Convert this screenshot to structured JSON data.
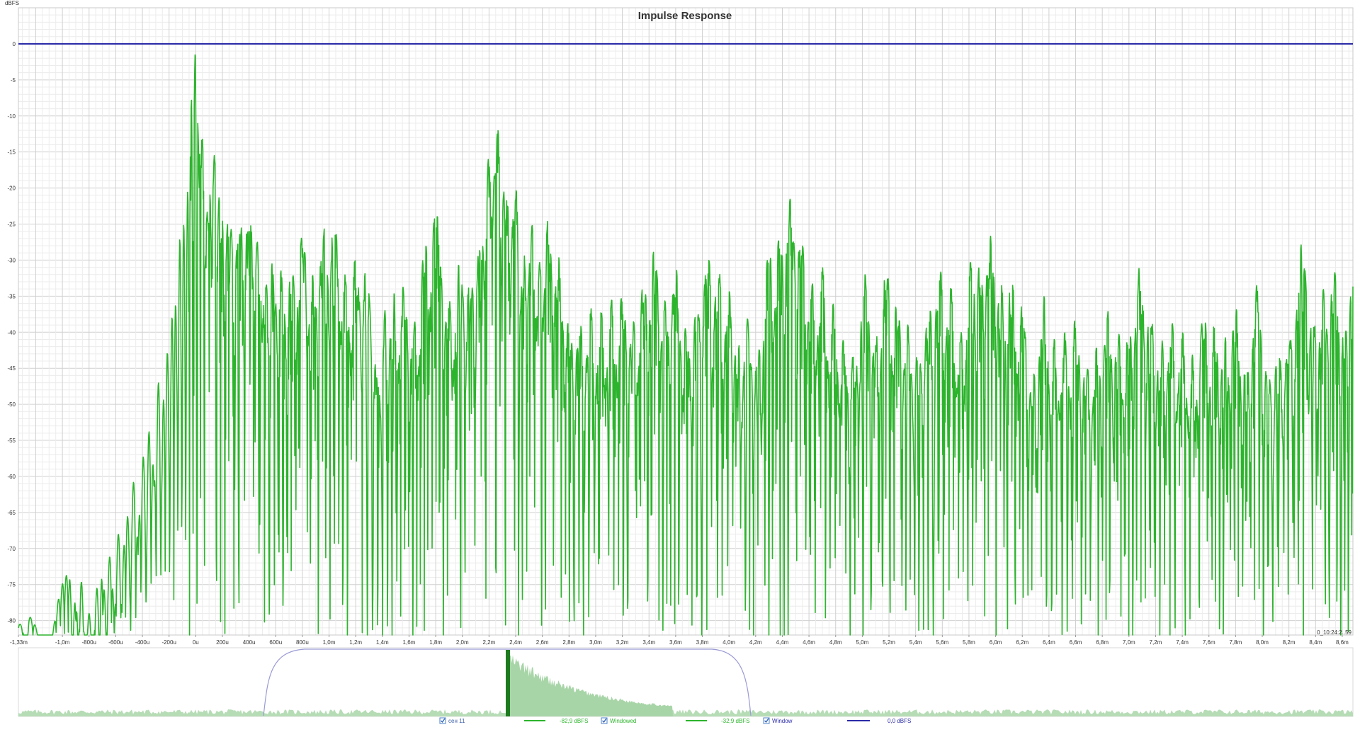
{
  "chart_data": {
    "type": "line",
    "title": "Impulse Response",
    "ylabel": "dBFS",
    "xlabel": "",
    "xlim": [
      -1.33,
      8.68
    ],
    "ylim": [
      -82,
      5
    ],
    "x_unit": "ms",
    "grid": true,
    "y_ticks": [
      0,
      -5,
      -10,
      -15,
      -20,
      -25,
      -30,
      -35,
      -40,
      -45,
      -50,
      -55,
      -60,
      -65,
      -70,
      -75,
      -80
    ],
    "y_tick_labels": [
      "0",
      "-5",
      "-10",
      "-15",
      "-20",
      "-25",
      "-30",
      "-35",
      "-40",
      "-45",
      "-50",
      "-55",
      "-60",
      "-65",
      "-70",
      "-75",
      "-80"
    ],
    "x_ticks": [
      -1.33,
      -1.0,
      -0.8,
      -0.6,
      -0.4,
      -0.2,
      0,
      0.2,
      0.4,
      0.6,
      0.8,
      1.0,
      1.2,
      1.4,
      1.6,
      1.8,
      2.0,
      2.2,
      2.4,
      2.6,
      2.8,
      3.0,
      3.2,
      3.4,
      3.6,
      3.8,
      4.0,
      4.2,
      4.4,
      4.6,
      4.8,
      5.0,
      5.2,
      5.4,
      5.6,
      5.8,
      6.0,
      6.2,
      6.4,
      6.6,
      6.8,
      7.0,
      7.2,
      7.4,
      7.6,
      7.8,
      8.0,
      8.2,
      8.4,
      8.6
    ],
    "x_tick_labels": [
      "-1,33m",
      "-1,0m",
      "-800u",
      "-600u",
      "-400u",
      "-200u",
      "0u",
      "200u",
      "400u",
      "600u",
      "800u",
      "1,0m",
      "1,2m",
      "1,4m",
      "1,6m",
      "1,8m",
      "2,0m",
      "2,2m",
      "2,4m",
      "2,6m",
      "2,8m",
      "3,0m",
      "3,2m",
      "3,4m",
      "3,6m",
      "3,8m",
      "4,0m",
      "4,2m",
      "4,4m",
      "4,6m",
      "4,8m",
      "5,0m",
      "5,2m",
      "5,4m",
      "5,6m",
      "5,8m",
      "6,0m",
      "6,2m",
      "6,4m",
      "6,6m",
      "6,8m",
      "7,0m",
      "7,2m",
      "7,4m",
      "7,6m",
      "7,8m",
      "8,0m",
      "8,2m",
      "8,4m",
      "8,6m"
    ],
    "series": [
      {
        "name": "Windowed",
        "color": "#2db42d",
        "peaks": [
          [
            -1.3,
            -80.5
          ],
          [
            -1.25,
            -79.5
          ],
          [
            -0.95,
            -73.5
          ],
          [
            -0.9,
            -76
          ],
          [
            -0.86,
            -74.5
          ],
          [
            -0.8,
            -79
          ],
          [
            -0.74,
            -75.5
          ],
          [
            -0.7,
            -72.5
          ],
          [
            -0.64,
            -70.5
          ],
          [
            -0.58,
            -68
          ],
          [
            -0.52,
            -64
          ],
          [
            -0.46,
            -60
          ],
          [
            -0.4,
            -56.5
          ],
          [
            -0.34,
            -52
          ],
          [
            -0.28,
            -47
          ],
          [
            -0.22,
            -42
          ],
          [
            -0.16,
            -33
          ],
          [
            -0.12,
            -27
          ],
          [
            -0.09,
            -25
          ],
          [
            -0.06,
            -20.5
          ],
          [
            -0.03,
            -7.5
          ],
          [
            0.0,
            0
          ],
          [
            0.04,
            -11.5
          ],
          [
            0.1,
            -19
          ],
          [
            0.14,
            -15
          ],
          [
            0.18,
            -20
          ],
          [
            0.25,
            -23.5
          ],
          [
            0.33,
            -24
          ],
          [
            0.4,
            -22.5
          ],
          [
            0.47,
            -26.5
          ],
          [
            0.52,
            -31.5
          ],
          [
            0.58,
            -29.5
          ],
          [
            0.64,
            -31.5
          ],
          [
            0.72,
            -31
          ],
          [
            0.8,
            -26
          ],
          [
            0.88,
            -32
          ],
          [
            0.96,
            -25.5
          ],
          [
            1.04,
            -24.5
          ],
          [
            1.12,
            -32
          ],
          [
            1.2,
            -29.5
          ],
          [
            1.28,
            -31
          ],
          [
            1.36,
            -43
          ],
          [
            1.42,
            -37
          ],
          [
            1.48,
            -34
          ],
          [
            1.56,
            -33.5
          ],
          [
            1.64,
            -38.5
          ],
          [
            1.72,
            -27.5
          ],
          [
            1.8,
            -23
          ],
          [
            1.9,
            -35.5
          ],
          [
            1.98,
            -30
          ],
          [
            2.06,
            -32
          ],
          [
            2.14,
            -25.5
          ],
          [
            2.2,
            -15.5
          ],
          [
            2.26,
            -11
          ],
          [
            2.32,
            -19
          ],
          [
            2.4,
            -20
          ],
          [
            2.46,
            -29
          ],
          [
            2.52,
            -25
          ],
          [
            2.58,
            -30
          ],
          [
            2.64,
            -24.5
          ],
          [
            2.72,
            -29.5
          ],
          [
            2.8,
            -38
          ],
          [
            2.88,
            -38.5
          ],
          [
            2.96,
            -36.5
          ],
          [
            3.04,
            -37
          ],
          [
            3.12,
            -35.5
          ],
          [
            3.2,
            -34.5
          ],
          [
            3.28,
            -38
          ],
          [
            3.36,
            -33
          ],
          [
            3.44,
            -28.5
          ],
          [
            3.52,
            -35.5
          ],
          [
            3.6,
            -31
          ],
          [
            3.68,
            -39
          ],
          [
            3.76,
            -36
          ],
          [
            3.84,
            -29
          ],
          [
            3.92,
            -31
          ],
          [
            4.0,
            -34
          ],
          [
            4.06,
            -40
          ],
          [
            4.14,
            -38
          ],
          [
            4.22,
            -42
          ],
          [
            4.3,
            -28.5
          ],
          [
            4.38,
            -26.5
          ],
          [
            4.46,
            -21.5
          ],
          [
            4.54,
            -26.5
          ],
          [
            4.62,
            -33
          ],
          [
            4.7,
            -31
          ],
          [
            4.78,
            -36
          ],
          [
            4.86,
            -41
          ],
          [
            4.94,
            -42
          ],
          [
            5.02,
            -32
          ],
          [
            5.1,
            -40
          ],
          [
            5.18,
            -31
          ],
          [
            5.26,
            -35.5
          ],
          [
            5.34,
            -39
          ],
          [
            5.42,
            -42
          ],
          [
            5.5,
            -36
          ],
          [
            5.58,
            -31
          ],
          [
            5.66,
            -33.5
          ],
          [
            5.74,
            -40
          ],
          [
            5.82,
            -29.5
          ],
          [
            5.88,
            -30.5
          ],
          [
            5.96,
            -26.5
          ],
          [
            6.04,
            -33
          ],
          [
            6.12,
            -32.5
          ],
          [
            6.2,
            -36
          ],
          [
            6.28,
            -45
          ],
          [
            6.36,
            -35
          ],
          [
            6.44,
            -41
          ],
          [
            6.52,
            -40
          ],
          [
            6.6,
            -38
          ],
          [
            6.68,
            -44
          ],
          [
            6.76,
            -42
          ],
          [
            6.84,
            -37
          ],
          [
            6.92,
            -40
          ],
          [
            7.0,
            -39.5
          ],
          [
            7.08,
            -31
          ],
          [
            7.16,
            -37
          ],
          [
            7.24,
            -40.5
          ],
          [
            7.32,
            -38.5
          ],
          [
            7.4,
            -40
          ],
          [
            7.48,
            -43
          ],
          [
            7.56,
            -37
          ],
          [
            7.64,
            -39
          ],
          [
            7.72,
            -40.5
          ],
          [
            7.8,
            -36.5
          ],
          [
            7.88,
            -44
          ],
          [
            7.96,
            -33.5
          ],
          [
            8.04,
            -44
          ],
          [
            8.12,
            -42
          ],
          [
            8.2,
            -40
          ],
          [
            8.3,
            -27.5
          ],
          [
            8.38,
            -37.5
          ],
          [
            8.46,
            -34
          ],
          [
            8.54,
            -31
          ],
          [
            8.62,
            -38.5
          ],
          [
            8.68,
            -30.5
          ]
        ]
      },
      {
        "name": "Window",
        "color": "#2a2aa8",
        "x": [
          -1.33,
          8.68
        ],
        "values": [
          0,
          0
        ]
      }
    ],
    "legend": {
      "placement": "bottom",
      "items": [
        {
          "label": "сен 11",
          "value": "-82,9 dBFS",
          "color": "#2db42d",
          "checked": true
        },
        {
          "label": "Windowed",
          "value": "-32,9 dBFS",
          "color": "#2db42d",
          "checked": true
        },
        {
          "label": "Window",
          "value": "0,0 dBFS",
          "color": "#2a2aa8",
          "checked": true
        }
      ]
    },
    "cursor_readout": "0_10:24:2..59"
  }
}
